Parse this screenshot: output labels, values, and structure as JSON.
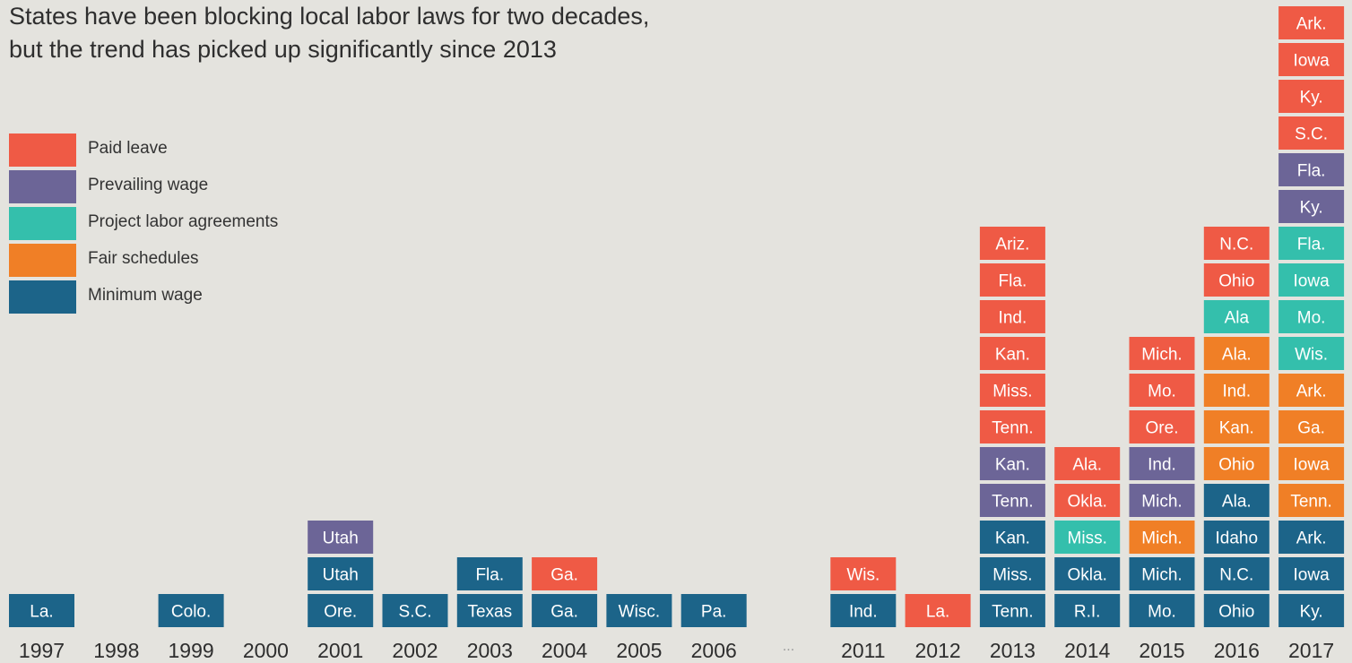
{
  "title_line1": "States have been blocking local labor laws for two decades,",
  "title_line2": "but the trend has picked up significantly since 2013",
  "legend": [
    {
      "key": "paid",
      "label": "Paid leave",
      "color": "#ef5a45"
    },
    {
      "key": "prev",
      "label": "Prevailing wage",
      "color": "#6c6597"
    },
    {
      "key": "pla",
      "label": "Project labor agreements",
      "color": "#34bfac"
    },
    {
      "key": "fair",
      "label": "Fair schedules",
      "color": "#f07f26"
    },
    {
      "key": "min",
      "label": "Minimum wage",
      "color": "#1c6489"
    }
  ],
  "chart_data": {
    "type": "bar",
    "subtype": "stacked-labeled-blocks",
    "gap_marker": "...",
    "categories": [
      "1997",
      "1998",
      "1999",
      "2000",
      "2001",
      "2002",
      "2003",
      "2004",
      "2005",
      "2006",
      "...",
      "2011",
      "2012",
      "2013",
      "2014",
      "2015",
      "2016",
      "2017"
    ],
    "stacks": [
      {
        "year": "1997",
        "blocks": [
          {
            "label": "La.",
            "type": "min"
          }
        ]
      },
      {
        "year": "1998",
        "blocks": []
      },
      {
        "year": "1999",
        "blocks": [
          {
            "label": "Colo.",
            "type": "min"
          }
        ]
      },
      {
        "year": "2000",
        "blocks": []
      },
      {
        "year": "2001",
        "blocks": [
          {
            "label": "Ore.",
            "type": "min"
          },
          {
            "label": "Utah",
            "type": "min"
          },
          {
            "label": "Utah",
            "type": "prev"
          }
        ]
      },
      {
        "year": "2002",
        "blocks": [
          {
            "label": "S.C.",
            "type": "min"
          }
        ]
      },
      {
        "year": "2003",
        "blocks": [
          {
            "label": "Texas",
            "type": "min"
          },
          {
            "label": "Fla.",
            "type": "min"
          }
        ]
      },
      {
        "year": "2004",
        "blocks": [
          {
            "label": "Ga.",
            "type": "min"
          },
          {
            "label": "Ga.",
            "type": "paid"
          }
        ]
      },
      {
        "year": "2005",
        "blocks": [
          {
            "label": "Wisc.",
            "type": "min"
          }
        ]
      },
      {
        "year": "2006",
        "blocks": [
          {
            "label": "Pa.",
            "type": "min"
          }
        ]
      },
      {
        "year": "...",
        "blocks": []
      },
      {
        "year": "2011",
        "blocks": [
          {
            "label": "Ind.",
            "type": "min"
          },
          {
            "label": "Wis.",
            "type": "paid"
          }
        ]
      },
      {
        "year": "2012",
        "blocks": [
          {
            "label": "La.",
            "type": "paid"
          }
        ]
      },
      {
        "year": "2013",
        "blocks": [
          {
            "label": "Tenn.",
            "type": "min"
          },
          {
            "label": "Miss.",
            "type": "min"
          },
          {
            "label": "Kan.",
            "type": "min"
          },
          {
            "label": "Tenn.",
            "type": "prev"
          },
          {
            "label": "Kan.",
            "type": "prev"
          },
          {
            "label": "Tenn.",
            "type": "paid"
          },
          {
            "label": "Miss.",
            "type": "paid"
          },
          {
            "label": "Kan.",
            "type": "paid"
          },
          {
            "label": "Ind.",
            "type": "paid"
          },
          {
            "label": "Fla.",
            "type": "paid"
          },
          {
            "label": "Ariz.",
            "type": "paid"
          }
        ]
      },
      {
        "year": "2014",
        "blocks": [
          {
            "label": "R.I.",
            "type": "min"
          },
          {
            "label": "Okla.",
            "type": "min"
          },
          {
            "label": "Miss.",
            "type": "pla"
          },
          {
            "label": "Okla.",
            "type": "paid"
          },
          {
            "label": "Ala.",
            "type": "paid"
          }
        ]
      },
      {
        "year": "2015",
        "blocks": [
          {
            "label": "Mo.",
            "type": "min"
          },
          {
            "label": "Mich.",
            "type": "min"
          },
          {
            "label": "Mich.",
            "type": "fair"
          },
          {
            "label": "Mich.",
            "type": "prev"
          },
          {
            "label": "Ind.",
            "type": "prev"
          },
          {
            "label": "Ore.",
            "type": "paid"
          },
          {
            "label": "Mo.",
            "type": "paid"
          },
          {
            "label": "Mich.",
            "type": "paid"
          }
        ]
      },
      {
        "year": "2016",
        "blocks": [
          {
            "label": "Ohio",
            "type": "min"
          },
          {
            "label": "N.C.",
            "type": "min"
          },
          {
            "label": "Idaho",
            "type": "min"
          },
          {
            "label": "Ala.",
            "type": "min"
          },
          {
            "label": "Ohio",
            "type": "fair"
          },
          {
            "label": "Kan.",
            "type": "fair"
          },
          {
            "label": "Ind.",
            "type": "fair"
          },
          {
            "label": "Ala.",
            "type": "fair"
          },
          {
            "label": "Ala",
            "type": "pla"
          },
          {
            "label": "Ohio",
            "type": "paid"
          },
          {
            "label": "N.C.",
            "type": "paid"
          }
        ]
      },
      {
        "year": "2017",
        "blocks": [
          {
            "label": "Ky.",
            "type": "min"
          },
          {
            "label": "Iowa",
            "type": "min"
          },
          {
            "label": "Ark.",
            "type": "min"
          },
          {
            "label": "Tenn.",
            "type": "fair"
          },
          {
            "label": "Iowa",
            "type": "fair"
          },
          {
            "label": "Ga.",
            "type": "fair"
          },
          {
            "label": "Ark.",
            "type": "fair"
          },
          {
            "label": "Wis.",
            "type": "pla"
          },
          {
            "label": "Mo.",
            "type": "pla"
          },
          {
            "label": "Iowa",
            "type": "pla"
          },
          {
            "label": "Fla.",
            "type": "pla"
          },
          {
            "label": "Ky.",
            "type": "prev"
          },
          {
            "label": "Fla.",
            "type": "prev"
          },
          {
            "label": "S.C.",
            "type": "paid"
          },
          {
            "label": "Ky.",
            "type": "paid"
          },
          {
            "label": "Iowa",
            "type": "paid"
          },
          {
            "label": "Ark.",
            "type": "paid"
          }
        ]
      }
    ]
  }
}
